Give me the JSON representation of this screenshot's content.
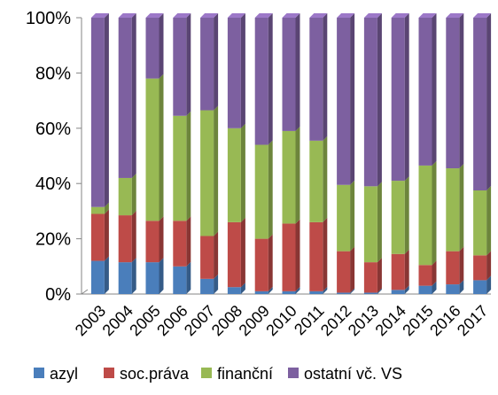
{
  "chart_data": {
    "type": "bar",
    "stacked": true,
    "normalized": true,
    "title": "",
    "xlabel": "",
    "ylabel": "",
    "ylim": [
      0,
      100
    ],
    "y_ticks": [
      "0%",
      "20%",
      "40%",
      "60%",
      "80%",
      "100%"
    ],
    "grid": false,
    "legend_position": "bottom",
    "categories": [
      "2003",
      "2004",
      "2005",
      "2006",
      "2007",
      "2008",
      "2009",
      "2010",
      "2011",
      "2012",
      "2013",
      "2014",
      "2015",
      "2016",
      "2017"
    ],
    "series": [
      {
        "name": "azyl",
        "color": "#4a7ebb",
        "values": [
          12,
          11.5,
          11.5,
          10,
          5.5,
          2.5,
          1,
          1,
          1,
          0.5,
          0.5,
          1.5,
          3,
          3.5,
          5
        ]
      },
      {
        "name": "soc.práva",
        "color": "#be4b48",
        "values": [
          17,
          17,
          15,
          16.5,
          15.5,
          23.5,
          19,
          24.5,
          25,
          15,
          11,
          13,
          7.5,
          12,
          9
        ]
      },
      {
        "name": "finanční",
        "color": "#98b954",
        "values": [
          2.5,
          13.5,
          51.5,
          38,
          45.5,
          34,
          34,
          33.5,
          29.5,
          24,
          27.5,
          26.5,
          36,
          30,
          23.5
        ]
      },
      {
        "name": "ostatní vč. VS",
        "color": "#7d60a0",
        "values": [
          68.5,
          58,
          22,
          35.5,
          33.5,
          40,
          46,
          41,
          44.5,
          60.5,
          61,
          59,
          53.5,
          54.5,
          62.5
        ]
      }
    ]
  }
}
